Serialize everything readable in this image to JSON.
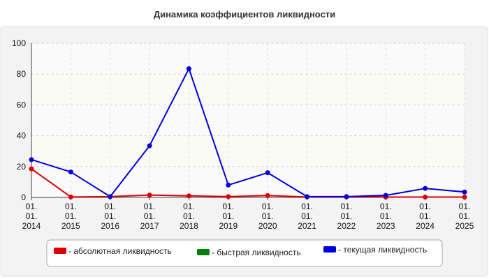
{
  "chart_data": {
    "type": "line",
    "title": "Динамика коэффициентов ликвидности",
    "xlabel": "",
    "ylabel": "",
    "ylim": [
      0,
      100
    ],
    "yticks": [
      0,
      20,
      40,
      60,
      80,
      100
    ],
    "grid": true,
    "legend_position": "bottom",
    "x": [
      [
        "01.",
        "01.",
        "2014"
      ],
      [
        "01.",
        "01.",
        "2015"
      ],
      [
        "01.",
        "01.",
        "2016"
      ],
      [
        "01.",
        "01.",
        "2017"
      ],
      [
        "01.",
        "01.",
        "2018"
      ],
      [
        "01.",
        "01.",
        "2019"
      ],
      [
        "01.",
        "01.",
        "2020"
      ],
      [
        "01.",
        "01.",
        "2021"
      ],
      [
        "01.",
        "01.",
        "2022"
      ],
      [
        "01.",
        "01.",
        "2023"
      ],
      [
        "01.",
        "01.",
        "2024"
      ],
      [
        "01.",
        "01.",
        "2025"
      ]
    ],
    "series": [
      {
        "name": "- абсолютная ликвидность",
        "color": "#dd0000",
        "values": [
          18.5,
          0.3,
          0.5,
          1.5,
          1.0,
          0.5,
          1.2,
          0.3,
          0.3,
          0.2,
          0.2,
          0.2
        ]
      },
      {
        "name": "- быстрая ликвидность",
        "color": "#008000",
        "values": [
          null,
          null,
          null,
          null,
          null,
          null,
          null,
          null,
          null,
          null,
          null,
          null
        ]
      },
      {
        "name": "- текущая ликвидность",
        "color": "#0000dd",
        "values": [
          24.5,
          16.5,
          0.5,
          33.5,
          83.5,
          8.0,
          16.0,
          0.5,
          0.5,
          1.3,
          5.8,
          3.5
        ]
      }
    ]
  }
}
